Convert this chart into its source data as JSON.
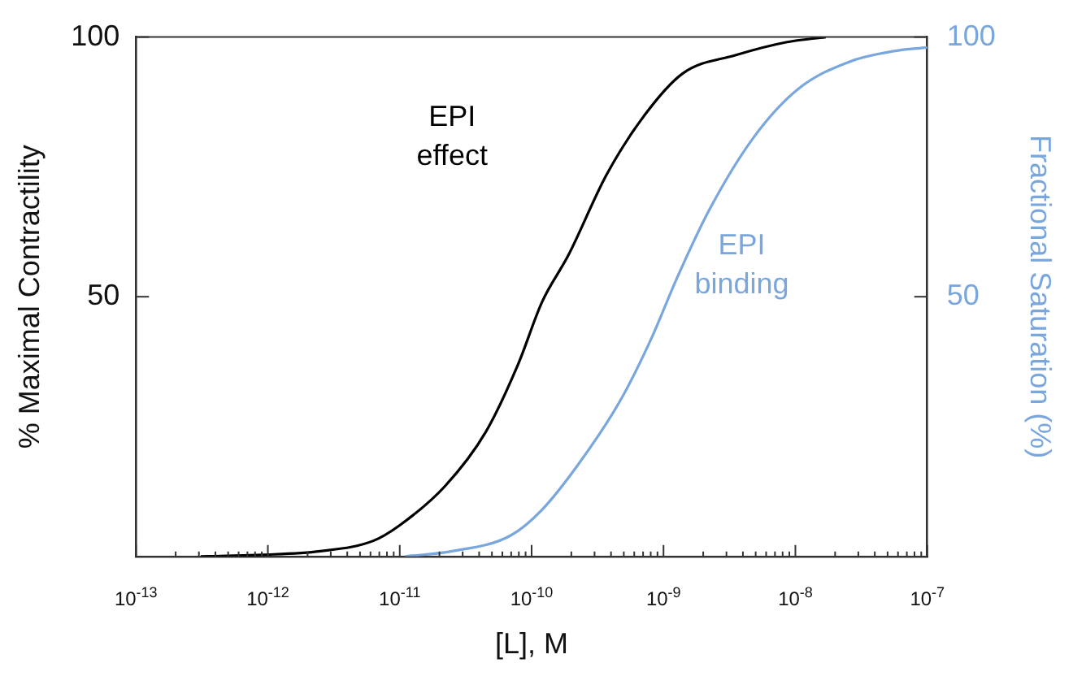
{
  "chart_data": {
    "type": "line",
    "xlabel": "[L], M",
    "ylabel": "% Maximal Contractility",
    "y2label": "Fractional Saturation (%)",
    "log": "x",
    "grid": false,
    "legend": false,
    "marker": "none",
    "line_style": "solid",
    "xlim": [
      1e-13,
      1e-07
    ],
    "xticks": [
      {
        "value": 1e-13,
        "label": "10$^{-13}$"
      },
      {
        "value": 2e-13,
        "label": null
      },
      {
        "value": 3e-13,
        "label": null
      },
      {
        "value": 4e-13,
        "label": null
      },
      {
        "value": 5e-13,
        "label": null
      },
      {
        "value": 6e-13,
        "label": null
      },
      {
        "value": 7e-13,
        "label": null
      },
      {
        "value": 8e-13,
        "label": null
      },
      {
        "value": 9e-13,
        "label": null
      },
      {
        "value": 1e-12,
        "label": "10$^{-12}$"
      },
      {
        "value": 2e-12,
        "label": null
      },
      {
        "value": 3e-12,
        "label": null
      },
      {
        "value": 4e-12,
        "label": null
      },
      {
        "value": 5e-12,
        "label": null
      },
      {
        "value": 6e-12,
        "label": null
      },
      {
        "value": 7e-12,
        "label": null
      },
      {
        "value": 8e-12,
        "label": null
      },
      {
        "value": 9e-12,
        "label": null
      },
      {
        "value": 1e-11,
        "label": "10$^{-11}$"
      },
      {
        "value": 2e-11,
        "label": null
      },
      {
        "value": 3e-11,
        "label": null
      },
      {
        "value": 4e-11,
        "label": null
      },
      {
        "value": 5e-11,
        "label": null
      },
      {
        "value": 6e-11,
        "label": null
      },
      {
        "value": 7e-11,
        "label": null
      },
      {
        "value": 8e-11,
        "label": null
      },
      {
        "value": 9e-11,
        "label": null
      },
      {
        "value": 1e-10,
        "label": "10$^{-10}$"
      },
      {
        "value": 2e-10,
        "label": null
      },
      {
        "value": 3e-10,
        "label": null
      },
      {
        "value": 4e-10,
        "label": null
      },
      {
        "value": 5e-10,
        "label": null
      },
      {
        "value": 6e-10,
        "label": null
      },
      {
        "value": 7e-10,
        "label": null
      },
      {
        "value": 8e-10,
        "label": null
      },
      {
        "value": 9e-10,
        "label": null
      },
      {
        "value": 1e-09,
        "label": "10$^{-9}$"
      },
      {
        "value": 2e-09,
        "label": null
      },
      {
        "value": 3e-09,
        "label": null
      },
      {
        "value": 4e-09,
        "label": null
      },
      {
        "value": 5e-09,
        "label": null
      },
      {
        "value": 6e-09,
        "label": null
      },
      {
        "value": 7e-09,
        "label": null
      },
      {
        "value": 8e-09,
        "label": null
      },
      {
        "value": 9e-09,
        "label": null
      },
      {
        "value": 1e-08,
        "label": "10$^{-8}$"
      },
      {
        "value": 2e-08,
        "label": null
      },
      {
        "value": 3e-08,
        "label": null
      },
      {
        "value": 4e-08,
        "label": null
      },
      {
        "value": 5e-08,
        "label": null
      },
      {
        "value": 6e-08,
        "label": null
      },
      {
        "value": 7e-08,
        "label": null
      },
      {
        "value": 8e-08,
        "label": null
      },
      {
        "value": 9e-08,
        "label": null
      },
      {
        "value": 1e-07,
        "label": "10$^{-7}$"
      }
    ],
    "ylim": [
      0,
      100
    ],
    "yticks": [
      50,
      100
    ],
    "y2lim": [
      0,
      100
    ],
    "y2ticks": [
      50,
      100
    ],
    "series": [
      {
        "name": "EPI effect",
        "color": "#000000",
        "x": [
          3.1e-13,
          8.9e-13,
          2.5e-12,
          6.3e-12,
          1e-11,
          2.2e-11,
          4.5e-11,
          7.9e-11,
          1.2e-10,
          1.9e-10,
          3.7e-10,
          7.2e-10,
          1.4e-09,
          3.5e-09,
          8.5e-09,
          1.7e-08
        ],
        "values": [
          0,
          0.3,
          1,
          3,
          6,
          13.5,
          24,
          37,
          49,
          58,
          73.5,
          85,
          93,
          96.5,
          99,
          100
        ]
      },
      {
        "name": "EPI binding",
        "color": "#7aa6de",
        "axis": "y2",
        "x": [
          1.1e-11,
          2.5e-11,
          6.9e-11,
          1.2e-10,
          2.3e-10,
          4.7e-10,
          8.1e-10,
          1.26e-09,
          2.2e-09,
          4.8e-09,
          1.05e-08,
          2.6e-08,
          5.6e-08,
          1e-07
        ],
        "values": [
          0,
          1,
          4,
          9,
          18,
          30,
          42,
          53.5,
          66.5,
          80.6,
          90,
          95.3,
          97.3,
          98
        ]
      }
    ]
  }
}
